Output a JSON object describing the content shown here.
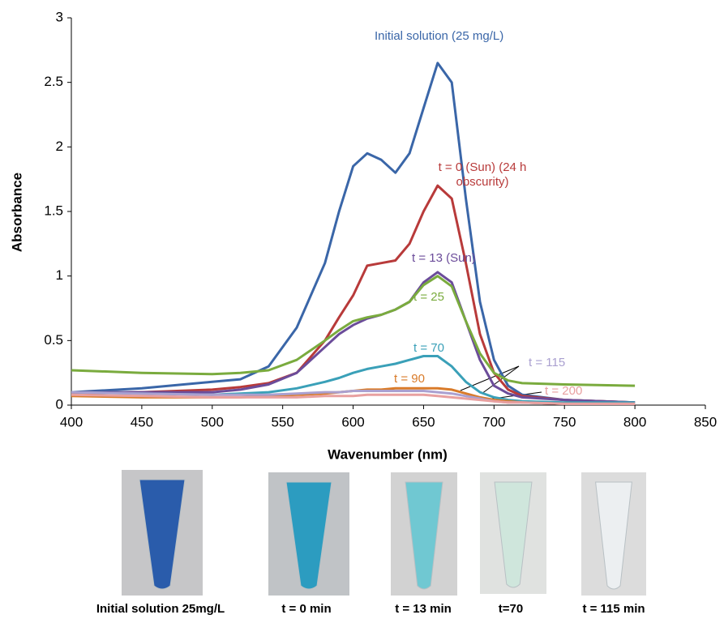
{
  "chart_data": {
    "type": "line",
    "xlabel": "Wavenumber (nm)",
    "ylabel": "Absorbance",
    "x": [
      400,
      450,
      500,
      520,
      540,
      560,
      580,
      590,
      600,
      610,
      620,
      630,
      640,
      650,
      660,
      670,
      680,
      690,
      700,
      710,
      720,
      750,
      800
    ],
    "series": [
      {
        "name": "Initial solution (25 mg/L)",
        "color": "#3a66a8",
        "values": [
          0.1,
          0.13,
          0.18,
          0.2,
          0.3,
          0.6,
          1.1,
          1.5,
          1.85,
          1.95,
          1.9,
          1.8,
          1.95,
          2.3,
          2.65,
          2.5,
          1.6,
          0.8,
          0.35,
          0.15,
          0.08,
          0.04,
          0.02
        ]
      },
      {
        "name": "t = 0 (Sun) (24 h obscurity)",
        "color": "#b83a3a",
        "values": [
          0.09,
          0.1,
          0.12,
          0.14,
          0.17,
          0.25,
          0.5,
          0.68,
          0.85,
          1.08,
          1.1,
          1.12,
          1.25,
          1.5,
          1.7,
          1.6,
          1.1,
          0.55,
          0.25,
          0.12,
          0.07,
          0.04,
          0.02
        ]
      },
      {
        "name": "t = 13 (Sun)",
        "color": "#6b4c9a",
        "values": [
          0.1,
          0.1,
          0.1,
          0.12,
          0.16,
          0.25,
          0.45,
          0.55,
          0.62,
          0.67,
          0.7,
          0.74,
          0.8,
          0.95,
          1.03,
          0.95,
          0.65,
          0.35,
          0.15,
          0.09,
          0.06,
          0.04,
          0.02
        ]
      },
      {
        "name": "t = 25",
        "color": "#7aab3e",
        "values": [
          0.27,
          0.25,
          0.24,
          0.25,
          0.27,
          0.35,
          0.5,
          0.58,
          0.65,
          0.68,
          0.7,
          0.74,
          0.8,
          0.93,
          1.0,
          0.92,
          0.65,
          0.4,
          0.25,
          0.19,
          0.17,
          0.16,
          0.15
        ]
      },
      {
        "name": "t = 70",
        "color": "#3aa0b8",
        "values": [
          0.1,
          0.09,
          0.08,
          0.09,
          0.1,
          0.13,
          0.18,
          0.21,
          0.25,
          0.28,
          0.3,
          0.32,
          0.35,
          0.38,
          0.38,
          0.3,
          0.18,
          0.1,
          0.06,
          0.04,
          0.03,
          0.02,
          0.02
        ]
      },
      {
        "name": "t = 90",
        "color": "#d97b2a",
        "values": [
          0.07,
          0.06,
          0.06,
          0.06,
          0.07,
          0.08,
          0.09,
          0.1,
          0.11,
          0.12,
          0.12,
          0.13,
          0.13,
          0.13,
          0.13,
          0.12,
          0.09,
          0.06,
          0.04,
          0.03,
          0.02,
          0.01,
          0.01
        ]
      },
      {
        "name": "t = 115",
        "color": "#aaa0d0",
        "values": [
          0.1,
          0.09,
          0.08,
          0.08,
          0.08,
          0.09,
          0.1,
          0.1,
          0.11,
          0.11,
          0.11,
          0.11,
          0.11,
          0.11,
          0.1,
          0.09,
          0.07,
          0.05,
          0.03,
          0.02,
          0.02,
          0.01,
          0.01
        ]
      },
      {
        "name": "t = 200",
        "color": "#e8a0a0",
        "values": [
          0.08,
          0.07,
          0.06,
          0.06,
          0.06,
          0.06,
          0.07,
          0.07,
          0.07,
          0.08,
          0.08,
          0.08,
          0.08,
          0.08,
          0.07,
          0.06,
          0.05,
          0.04,
          0.03,
          0.02,
          0.02,
          0.01,
          0.01
        ]
      }
    ],
    "xlim": [
      400,
      850
    ],
    "xticks": [
      400,
      450,
      500,
      550,
      600,
      650,
      700,
      750,
      800,
      850
    ],
    "ylim": [
      0,
      3
    ],
    "yticks": [
      0,
      0.5,
      1,
      1.5,
      2,
      2.5,
      3
    ],
    "grid": false
  },
  "photo_captions": [
    "Initial solution 25mg/L",
    "t = 0 min",
    "t = 13 min",
    "t=70",
    "t = 115 min"
  ]
}
